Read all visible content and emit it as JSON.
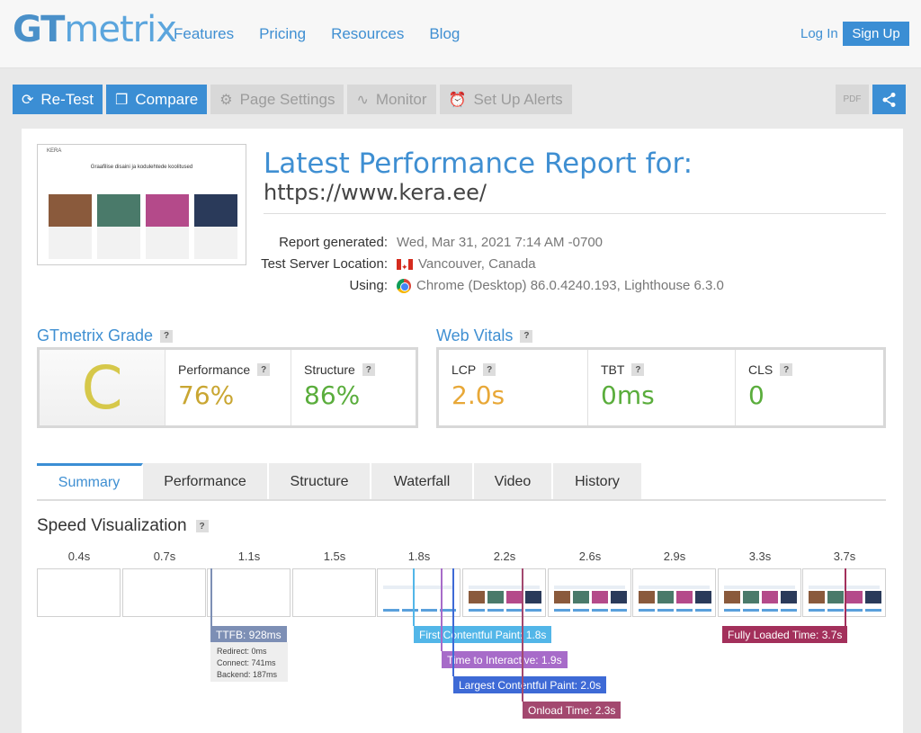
{
  "header": {
    "logo_gt": "GT",
    "logo_metrix": "metrix",
    "nav": [
      "Features",
      "Pricing",
      "Resources",
      "Blog"
    ],
    "login": "Log In",
    "signup": "Sign Up"
  },
  "toolbar": {
    "retest": "Re-Test",
    "compare": "Compare",
    "page_settings": "Page Settings",
    "monitor": "Monitor",
    "alerts": "Set Up Alerts",
    "pdf": "PDF"
  },
  "report": {
    "title": "Latest Performance Report for:",
    "url": "https://www.kera.ee/",
    "generated_label": "Report generated:",
    "generated_value": "Wed, Mar 31, 2021 7:14 AM -0700",
    "location_label": "Test Server Location:",
    "location_value": "Vancouver, Canada",
    "using_label": "Using:",
    "using_value": "Chrome (Desktop) 86.0.4240.193, Lighthouse 6.3.0"
  },
  "thumbnail": {
    "brand": "KERA",
    "headline": "Graafilise disaini ja kodulehtede koolitused"
  },
  "grade": {
    "title": "GTmetrix Grade",
    "letter": "C",
    "performance_label": "Performance",
    "performance_value": "76%",
    "structure_label": "Structure",
    "structure_value": "86%"
  },
  "vitals": {
    "title": "Web Vitals",
    "lcp_label": "LCP",
    "lcp_value": "2.0s",
    "tbt_label": "TBT",
    "tbt_value": "0ms",
    "cls_label": "CLS",
    "cls_value": "0"
  },
  "tabs": [
    "Summary",
    "Performance",
    "Structure",
    "Waterfall",
    "Video",
    "History"
  ],
  "speed": {
    "title": "Speed Visualization",
    "frames": [
      "0.4s",
      "0.7s",
      "1.1s",
      "1.5s",
      "1.8s",
      "2.2s",
      "2.6s",
      "2.9s",
      "3.3s",
      "3.7s"
    ],
    "ttfb": "TTFB: 928ms",
    "redirect": "Redirect: 0ms",
    "connect": "Connect: 741ms",
    "backend": "Backend: 187ms",
    "fcp": "First Contentful Paint: 1.8s",
    "tti": "Time to Interactive: 1.9s",
    "lcp": "Largest Contentful Paint: 2.0s",
    "onload": "Onload Time: 2.3s",
    "fully_loaded": "Fully Loaded Time: 3.7s"
  },
  "colors": {
    "accent": "#3b8ed4",
    "grade_c": "#d6c84a",
    "perf": "#c9a632",
    "good": "#5aad3c",
    "lcp": "#e8a838",
    "ttfb": "#7d8fb5",
    "fcp": "#52b6e8",
    "tti": "#a76bc9",
    "lcp_marker": "#3e6ad6",
    "onload": "#a3486f",
    "fully": "#a3305b"
  }
}
